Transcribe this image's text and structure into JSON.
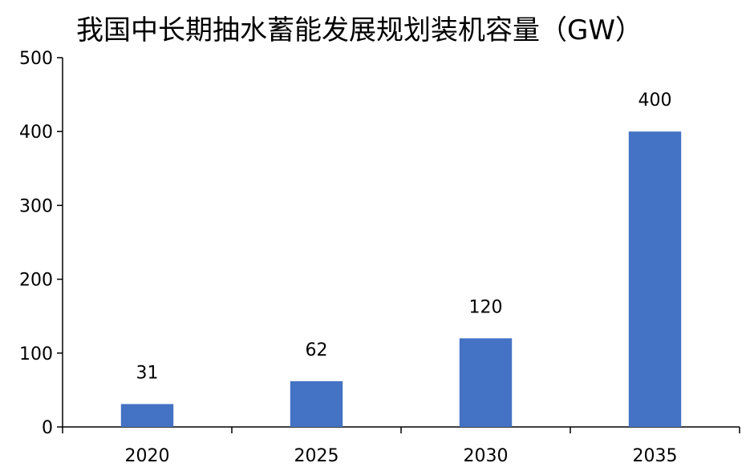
{
  "chart_data": {
    "type": "bar",
    "title": "我国中长期抽水蓄能发展规划装机容量（GW）",
    "categories": [
      "2020",
      "2025",
      "2030",
      "2035"
    ],
    "values": [
      31,
      62,
      120,
      400
    ],
    "data_labels": [
      "31",
      "62",
      "120",
      "400"
    ],
    "ylim": [
      0,
      500
    ],
    "yticks": [
      "0",
      "100",
      "200",
      "300",
      "400",
      "500"
    ],
    "xlabel": "",
    "ylabel": "",
    "grid": false,
    "bar_color": "#4472C4"
  }
}
